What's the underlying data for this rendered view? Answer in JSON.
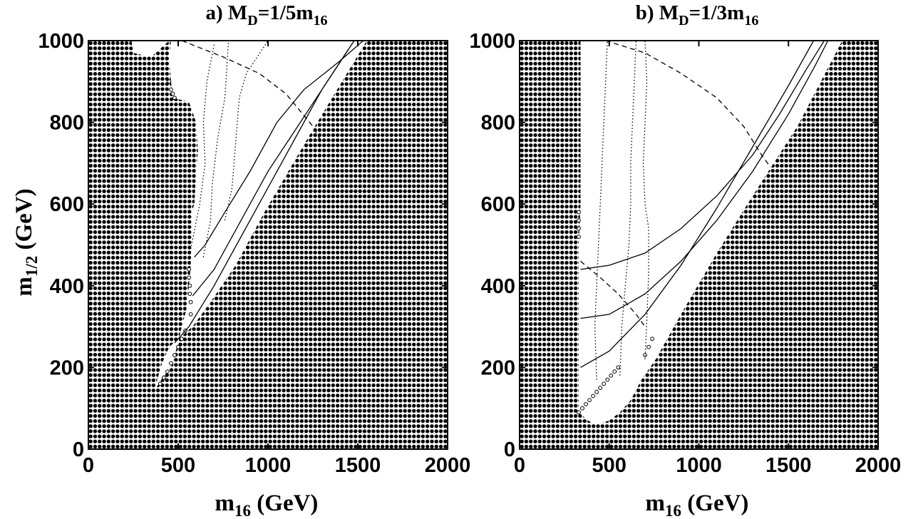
{
  "chart_data": [
    {
      "type": "scatter",
      "title_prefix": "a) M",
      "title_sub1": "D",
      "title_mid": "=1/5m",
      "title_sub2": "16",
      "xlabel_main": "m",
      "xlabel_sub": "16",
      "xlabel_unit": " (GeV)",
      "ylabel_main": "m",
      "ylabel_sub": "1/2",
      "ylabel_unit": " (GeV)",
      "xlim": [
        0,
        2000
      ],
      "ylim": [
        0,
        1000
      ],
      "xticks": [
        "0",
        "500",
        "1000",
        "1500",
        "2000"
      ],
      "yticks": [
        "0",
        "200",
        "400",
        "600",
        "800",
        "1000"
      ],
      "grid_step": [
        25,
        12.5
      ],
      "allowed_upper": [
        [
          240,
          1000
        ],
        [
          250,
          970
        ],
        [
          350,
          960
        ],
        [
          450,
          1000
        ],
        [
          1550,
          1000
        ]
      ],
      "allowed_left": [
        [
          1550,
          1000
        ],
        [
          1220,
          760
        ],
        [
          980,
          580
        ],
        [
          820,
          450
        ],
        [
          680,
          360
        ],
        [
          580,
          300
        ],
        [
          500,
          270
        ],
        [
          450,
          250
        ],
        [
          410,
          210
        ],
        [
          380,
          165
        ],
        [
          370,
          145
        ],
        [
          420,
          180
        ],
        [
          460,
          200
        ],
        [
          500,
          260
        ],
        [
          520,
          300
        ],
        [
          545,
          340
        ],
        [
          560,
          400
        ],
        [
          570,
          450
        ],
        [
          575,
          530
        ],
        [
          575,
          580
        ],
        [
          590,
          600
        ],
        [
          600,
          680
        ],
        [
          610,
          730
        ],
        [
          600,
          800
        ],
        [
          560,
          850
        ],
        [
          470,
          860
        ],
        [
          460,
          900
        ],
        [
          450,
          960
        ],
        [
          460,
          1000
        ]
      ],
      "open_circles": [
        [
          450,
          900
        ],
        [
          460,
          880
        ],
        [
          470,
          870
        ],
        [
          480,
          860
        ],
        [
          560,
          440
        ],
        [
          560,
          420
        ],
        [
          565,
          400
        ],
        [
          565,
          380
        ],
        [
          570,
          360
        ],
        [
          570,
          330
        ],
        [
          540,
          290
        ],
        [
          520,
          270
        ],
        [
          500,
          250
        ],
        [
          480,
          230
        ],
        [
          460,
          210
        ],
        [
          440,
          190
        ],
        [
          420,
          175
        ],
        [
          400,
          160
        ]
      ],
      "lines": [
        {
          "style": "solid",
          "points": [
            [
              590,
              470
            ],
            [
              650,
              500
            ],
            [
              760,
              580
            ],
            [
              900,
              680
            ],
            [
              1050,
              800
            ],
            [
              1200,
              880
            ],
            [
              1400,
              950
            ],
            [
              1530,
              1000
            ]
          ]
        },
        {
          "style": "solid",
          "points": [
            [
              580,
              375
            ],
            [
              700,
              440
            ],
            [
              850,
              560
            ],
            [
              1000,
              680
            ],
            [
              1150,
              780
            ],
            [
              1300,
              880
            ],
            [
              1420,
              960
            ],
            [
              1480,
              1000
            ]
          ]
        },
        {
          "style": "solid",
          "points": [
            [
              480,
              260
            ],
            [
              560,
              300
            ],
            [
              700,
              400
            ],
            [
              850,
              520
            ],
            [
              1000,
              640
            ],
            [
              1150,
              760
            ],
            [
              1300,
              880
            ],
            [
              1450,
              980
            ]
          ]
        },
        {
          "style": "dashed",
          "points": [
            [
              520,
              1000
            ],
            [
              750,
              960
            ],
            [
              950,
              920
            ],
            [
              1100,
              870
            ],
            [
              1250,
              790
            ],
            [
              1300,
              750
            ]
          ]
        },
        {
          "style": "dotted",
          "points": [
            [
              570,
              490
            ],
            [
              620,
              600
            ],
            [
              650,
              700
            ],
            [
              640,
              800
            ],
            [
              660,
              900
            ],
            [
              700,
              990
            ]
          ]
        },
        {
          "style": "dotted",
          "points": [
            [
              640,
              470
            ],
            [
              680,
              560
            ],
            [
              690,
              650
            ],
            [
              720,
              760
            ],
            [
              760,
              860
            ],
            [
              780,
              1000
            ]
          ]
        },
        {
          "style": "dotted",
          "points": [
            [
              760,
              560
            ],
            [
              800,
              640
            ],
            [
              820,
              750
            ],
            [
              840,
              860
            ],
            [
              880,
              920
            ],
            [
              1000,
              1000
            ]
          ]
        }
      ]
    },
    {
      "type": "scatter",
      "title_prefix": "b) M",
      "title_sub1": "D",
      "title_mid": "=1/3m",
      "title_sub2": "16",
      "xlabel_main": "m",
      "xlabel_sub": "16",
      "xlabel_unit": " (GeV)",
      "ylabel_main": "",
      "ylabel_sub": "",
      "ylabel_unit": "",
      "xlim": [
        0,
        2000
      ],
      "ylim": [
        0,
        1000
      ],
      "xticks": [
        "0",
        "500",
        "1000",
        "1500",
        "2000"
      ],
      "yticks": [
        "0",
        "200",
        "400",
        "600",
        "800",
        "1000"
      ],
      "grid_step": [
        25,
        12.5
      ],
      "allowed_upper": [
        [
          340,
          1000
        ],
        [
          1800,
          1000
        ]
      ],
      "allowed_left": [
        [
          1800,
          1000
        ],
        [
          1550,
          790
        ],
        [
          1300,
          620
        ],
        [
          1100,
          480
        ],
        [
          900,
          330
        ],
        [
          760,
          220
        ],
        [
          680,
          170
        ],
        [
          620,
          120
        ],
        [
          560,
          90
        ],
        [
          500,
          70
        ],
        [
          430,
          60
        ],
        [
          380,
          70
        ],
        [
          330,
          90
        ],
        [
          330,
          500
        ],
        [
          340,
          600
        ],
        [
          340,
          700
        ],
        [
          340,
          800
        ],
        [
          340,
          900
        ],
        [
          340,
          1000
        ]
      ],
      "open_circles": [
        [
          330,
          90
        ],
        [
          350,
          100
        ],
        [
          370,
          110
        ],
        [
          390,
          120
        ],
        [
          410,
          130
        ],
        [
          430,
          140
        ],
        [
          450,
          150
        ],
        [
          470,
          160
        ],
        [
          490,
          170
        ],
        [
          510,
          180
        ],
        [
          530,
          190
        ],
        [
          550,
          200
        ],
        [
          330,
          520
        ],
        [
          330,
          540
        ],
        [
          330,
          560
        ],
        [
          330,
          580
        ],
        [
          700,
          230
        ],
        [
          720,
          250
        ],
        [
          740,
          270
        ]
      ],
      "lines": [
        {
          "style": "solid",
          "points": [
            [
              340,
              440
            ],
            [
              500,
              450
            ],
            [
              700,
              480
            ],
            [
              900,
              540
            ],
            [
              1100,
              620
            ],
            [
              1300,
              720
            ],
            [
              1450,
              820
            ],
            [
              1600,
              930
            ],
            [
              1700,
              1000
            ]
          ]
        },
        {
          "style": "solid",
          "points": [
            [
              340,
              320
            ],
            [
              500,
              330
            ],
            [
              700,
              380
            ],
            [
              900,
              460
            ],
            [
              1100,
              560
            ],
            [
              1300,
              680
            ],
            [
              1500,
              820
            ],
            [
              1650,
              940
            ],
            [
              1720,
              1000
            ]
          ]
        },
        {
          "style": "solid",
          "points": [
            [
              340,
              200
            ],
            [
              500,
              240
            ],
            [
              700,
              330
            ],
            [
              900,
              450
            ],
            [
              1100,
              590
            ],
            [
              1300,
              740
            ],
            [
              1500,
              890
            ],
            [
              1640,
              1000
            ]
          ]
        },
        {
          "style": "dashed",
          "points": [
            [
              480,
              1000
            ],
            [
              700,
              970
            ],
            [
              900,
              920
            ],
            [
              1100,
              860
            ],
            [
              1250,
              790
            ],
            [
              1350,
              720
            ],
            [
              1400,
              690
            ]
          ]
        },
        {
          "style": "dashed",
          "points": [
            [
              340,
              460
            ],
            [
              450,
              420
            ],
            [
              550,
              380
            ],
            [
              650,
              330
            ],
            [
              700,
              300
            ]
          ]
        },
        {
          "style": "dotted",
          "points": [
            [
              430,
              170
            ],
            [
              420,
              300
            ],
            [
              430,
              400
            ],
            [
              440,
              500
            ],
            [
              450,
              600
            ],
            [
              460,
              700
            ],
            [
              470,
              800
            ],
            [
              480,
              900
            ],
            [
              490,
              1000
            ]
          ]
        },
        {
          "style": "dotted",
          "points": [
            [
              560,
              180
            ],
            [
              570,
              300
            ],
            [
              590,
              400
            ],
            [
              610,
              500
            ],
            [
              620,
              600
            ],
            [
              620,
              700
            ],
            [
              630,
              800
            ],
            [
              640,
              900
            ],
            [
              650,
              1000
            ]
          ]
        },
        {
          "style": "dotted",
          "points": [
            [
              700,
              220
            ],
            [
              710,
              320
            ],
            [
              720,
              430
            ],
            [
              720,
              540
            ],
            [
              700,
              600
            ],
            [
              690,
              700
            ],
            [
              700,
              800
            ],
            [
              710,
              900
            ],
            [
              700,
              1000
            ]
          ]
        }
      ]
    }
  ]
}
